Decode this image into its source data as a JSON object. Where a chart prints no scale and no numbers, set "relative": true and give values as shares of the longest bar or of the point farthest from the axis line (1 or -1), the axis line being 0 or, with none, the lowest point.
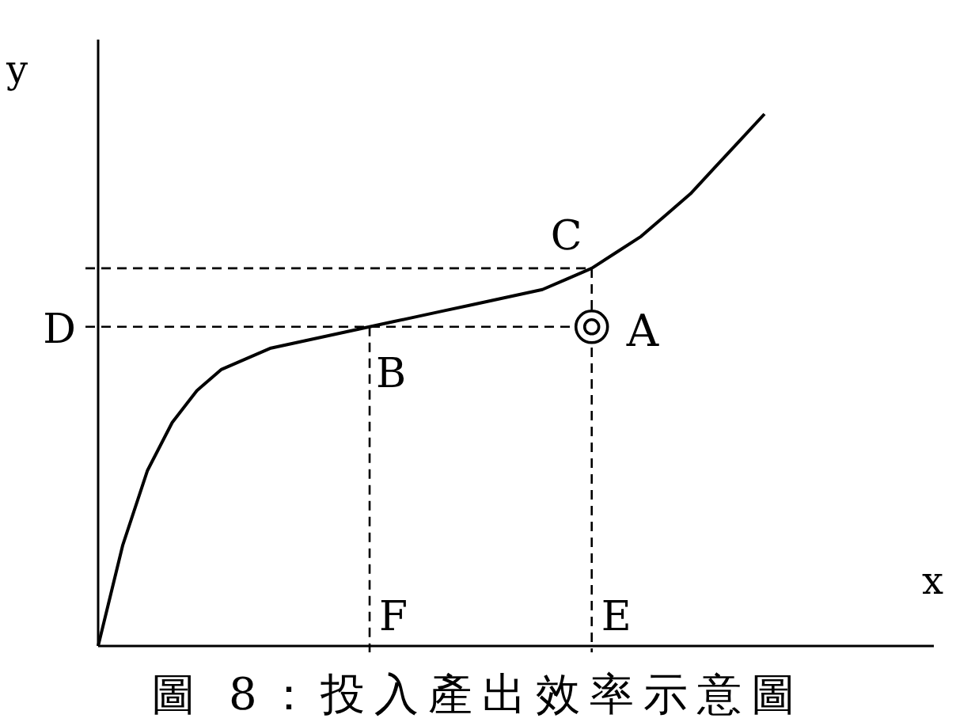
{
  "chart_data": {
    "type": "line",
    "relative": true,
    "title": "圖 8：投入產出效率示意圖",
    "xlabel": "x",
    "ylabel": "y",
    "categories": [
      null,
      null,
      null,
      null,
      null,
      null,
      null,
      null,
      null,
      null,
      null,
      null,
      null,
      null,
      null,
      null,
      null,
      null,
      null,
      null,
      null,
      null,
      null,
      null,
      null,
      null,
      null,
      null
    ],
    "series": [
      {
        "color": "#000000",
        "values": [
          0,
          0.19,
          0.33,
          0.42,
          0.48,
          0.52,
          0.54,
          0.56,
          0.57,
          0.58,
          0.59,
          0.6,
          0.61,
          0.62,
          0.63,
          0.64,
          0.65,
          0.66,
          0.67,
          0.69,
          0.71,
          0.74,
          0.77,
          0.81,
          0.85,
          0.9,
          0.95,
          1.0
        ]
      }
    ],
    "ref_lines": [
      {
        "axis": "y",
        "value": 0.6,
        "label": "D",
        "line_style": "dashed"
      },
      {
        "axis": "y",
        "value": 0.71,
        "label": null,
        "line_style": "dashed"
      }
    ],
    "annotations": [
      {
        "text": "B",
        "y": 0.6
      },
      {
        "text": "C",
        "y": 0.71
      },
      "F",
      "E",
      "A"
    ]
  }
}
